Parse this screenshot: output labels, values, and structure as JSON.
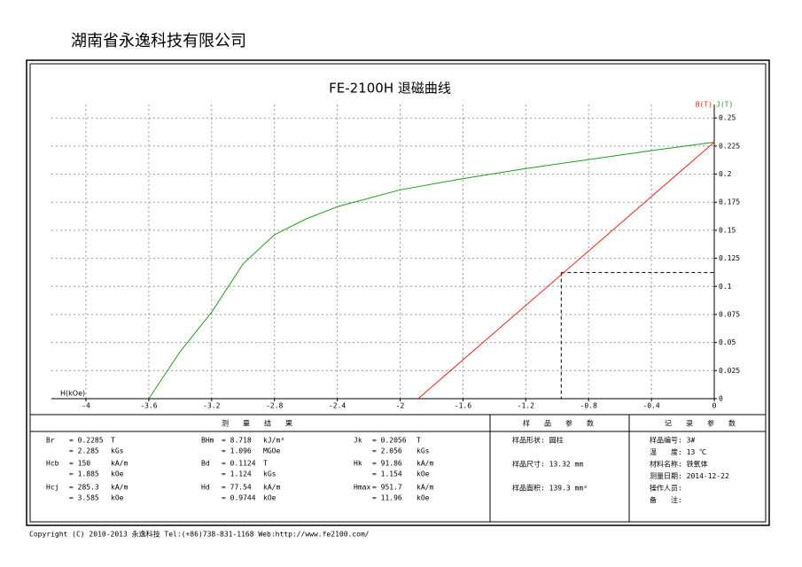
{
  "header": {
    "company": "湖南省永逸科技有限公司"
  },
  "chart_data": {
    "type": "line",
    "title": "FE-2100H 退磁曲线",
    "x_label": "H(kOe)",
    "xlim": [
      -4.22,
      0
    ],
    "ylim": [
      0,
      0.262
    ],
    "xticks": [
      -4,
      -3.6,
      -3.2,
      -2.8,
      -2.4,
      -2,
      -1.6,
      -1.2,
      -0.8,
      -0.4,
      0
    ],
    "yticks": [
      0,
      0.025,
      0.05,
      0.075,
      0.1,
      0.125,
      0.15,
      0.175,
      0.2,
      0.225,
      0.25
    ],
    "grid": true,
    "series": [
      {
        "name": "B(T)",
        "color": "#e8241a",
        "x": [
          -1.885,
          0
        ],
        "values": [
          0,
          0.2285
        ]
      },
      {
        "name": "J(T)",
        "color": "#1f9a1f",
        "x": [
          -3.6,
          -3.4,
          -3.2,
          -3.0,
          -2.8,
          -2.6,
          -2.4,
          -2,
          -1.6,
          -1.2,
          -0.8,
          -0.4,
          0
        ],
        "values": [
          0,
          0.042,
          0.077,
          0.12,
          0.146,
          0.16,
          0.171,
          0.186,
          0.196,
          0.205,
          0.213,
          0.221,
          0.2285
        ]
      }
    ],
    "dashed_point": {
      "x": -0.9744,
      "y": 0.1124
    }
  },
  "report": {
    "headers": [
      "测　　量　　结　　果",
      "样　　品　　参　　数",
      "记　　录　　参　　数"
    ],
    "results": [
      {
        "name": "Br",
        "lines": [
          [
            "= 0.2285",
            "T"
          ],
          [
            "= 2.285",
            "kGs"
          ]
        ]
      },
      {
        "name": "Hcb",
        "lines": [
          [
            "= 150",
            "kA/m"
          ],
          [
            "= 1.885",
            "kOe"
          ]
        ]
      },
      {
        "name": "Hcj",
        "lines": [
          [
            "= 285.3",
            "kA/m"
          ],
          [
            "= 3.585",
            "kOe"
          ]
        ]
      },
      {
        "name": "BHm",
        "lines": [
          [
            "= 8.718",
            "kJ/m³"
          ],
          [
            "= 1.096",
            "MGOe"
          ]
        ]
      },
      {
        "name": "Bd",
        "lines": [
          [
            "= 0.1124",
            "T"
          ],
          [
            "= 1.124",
            "kGs"
          ]
        ]
      },
      {
        "name": "Hd",
        "lines": [
          [
            "= 77.54",
            "kA/m"
          ],
          [
            "= 0.9744",
            "kOe"
          ]
        ]
      },
      {
        "name": "Jk",
        "lines": [
          [
            "= 0.2056",
            "T"
          ],
          [
            "= 2.056",
            "kGs"
          ]
        ]
      },
      {
        "name": "Hk",
        "lines": [
          [
            "= 91.86",
            "kA/m"
          ],
          [
            "= 1.154",
            "kOe"
          ]
        ]
      },
      {
        "name": "Hmax",
        "lines": [
          [
            "= 951.7",
            "kA/m"
          ],
          [
            "= 11.96",
            "kOe"
          ]
        ]
      }
    ],
    "sample": [
      "样品形状: 圆柱",
      "样品尺寸: 13.32 mm",
      "样品面积: 139.3 mm²"
    ],
    "record": [
      "样品编号: 3#",
      "温　　度: 13 ℃",
      "材料名称: 铁氧体",
      "测量日期: 2014-12-22",
      "操作人员:",
      "备　　注:"
    ]
  },
  "footer": {
    "copyright": "Copyright (C) 2010-2013 永逸科技  Tel:(+86)738-831-1168  Web:http://www.fe2100.com/"
  }
}
